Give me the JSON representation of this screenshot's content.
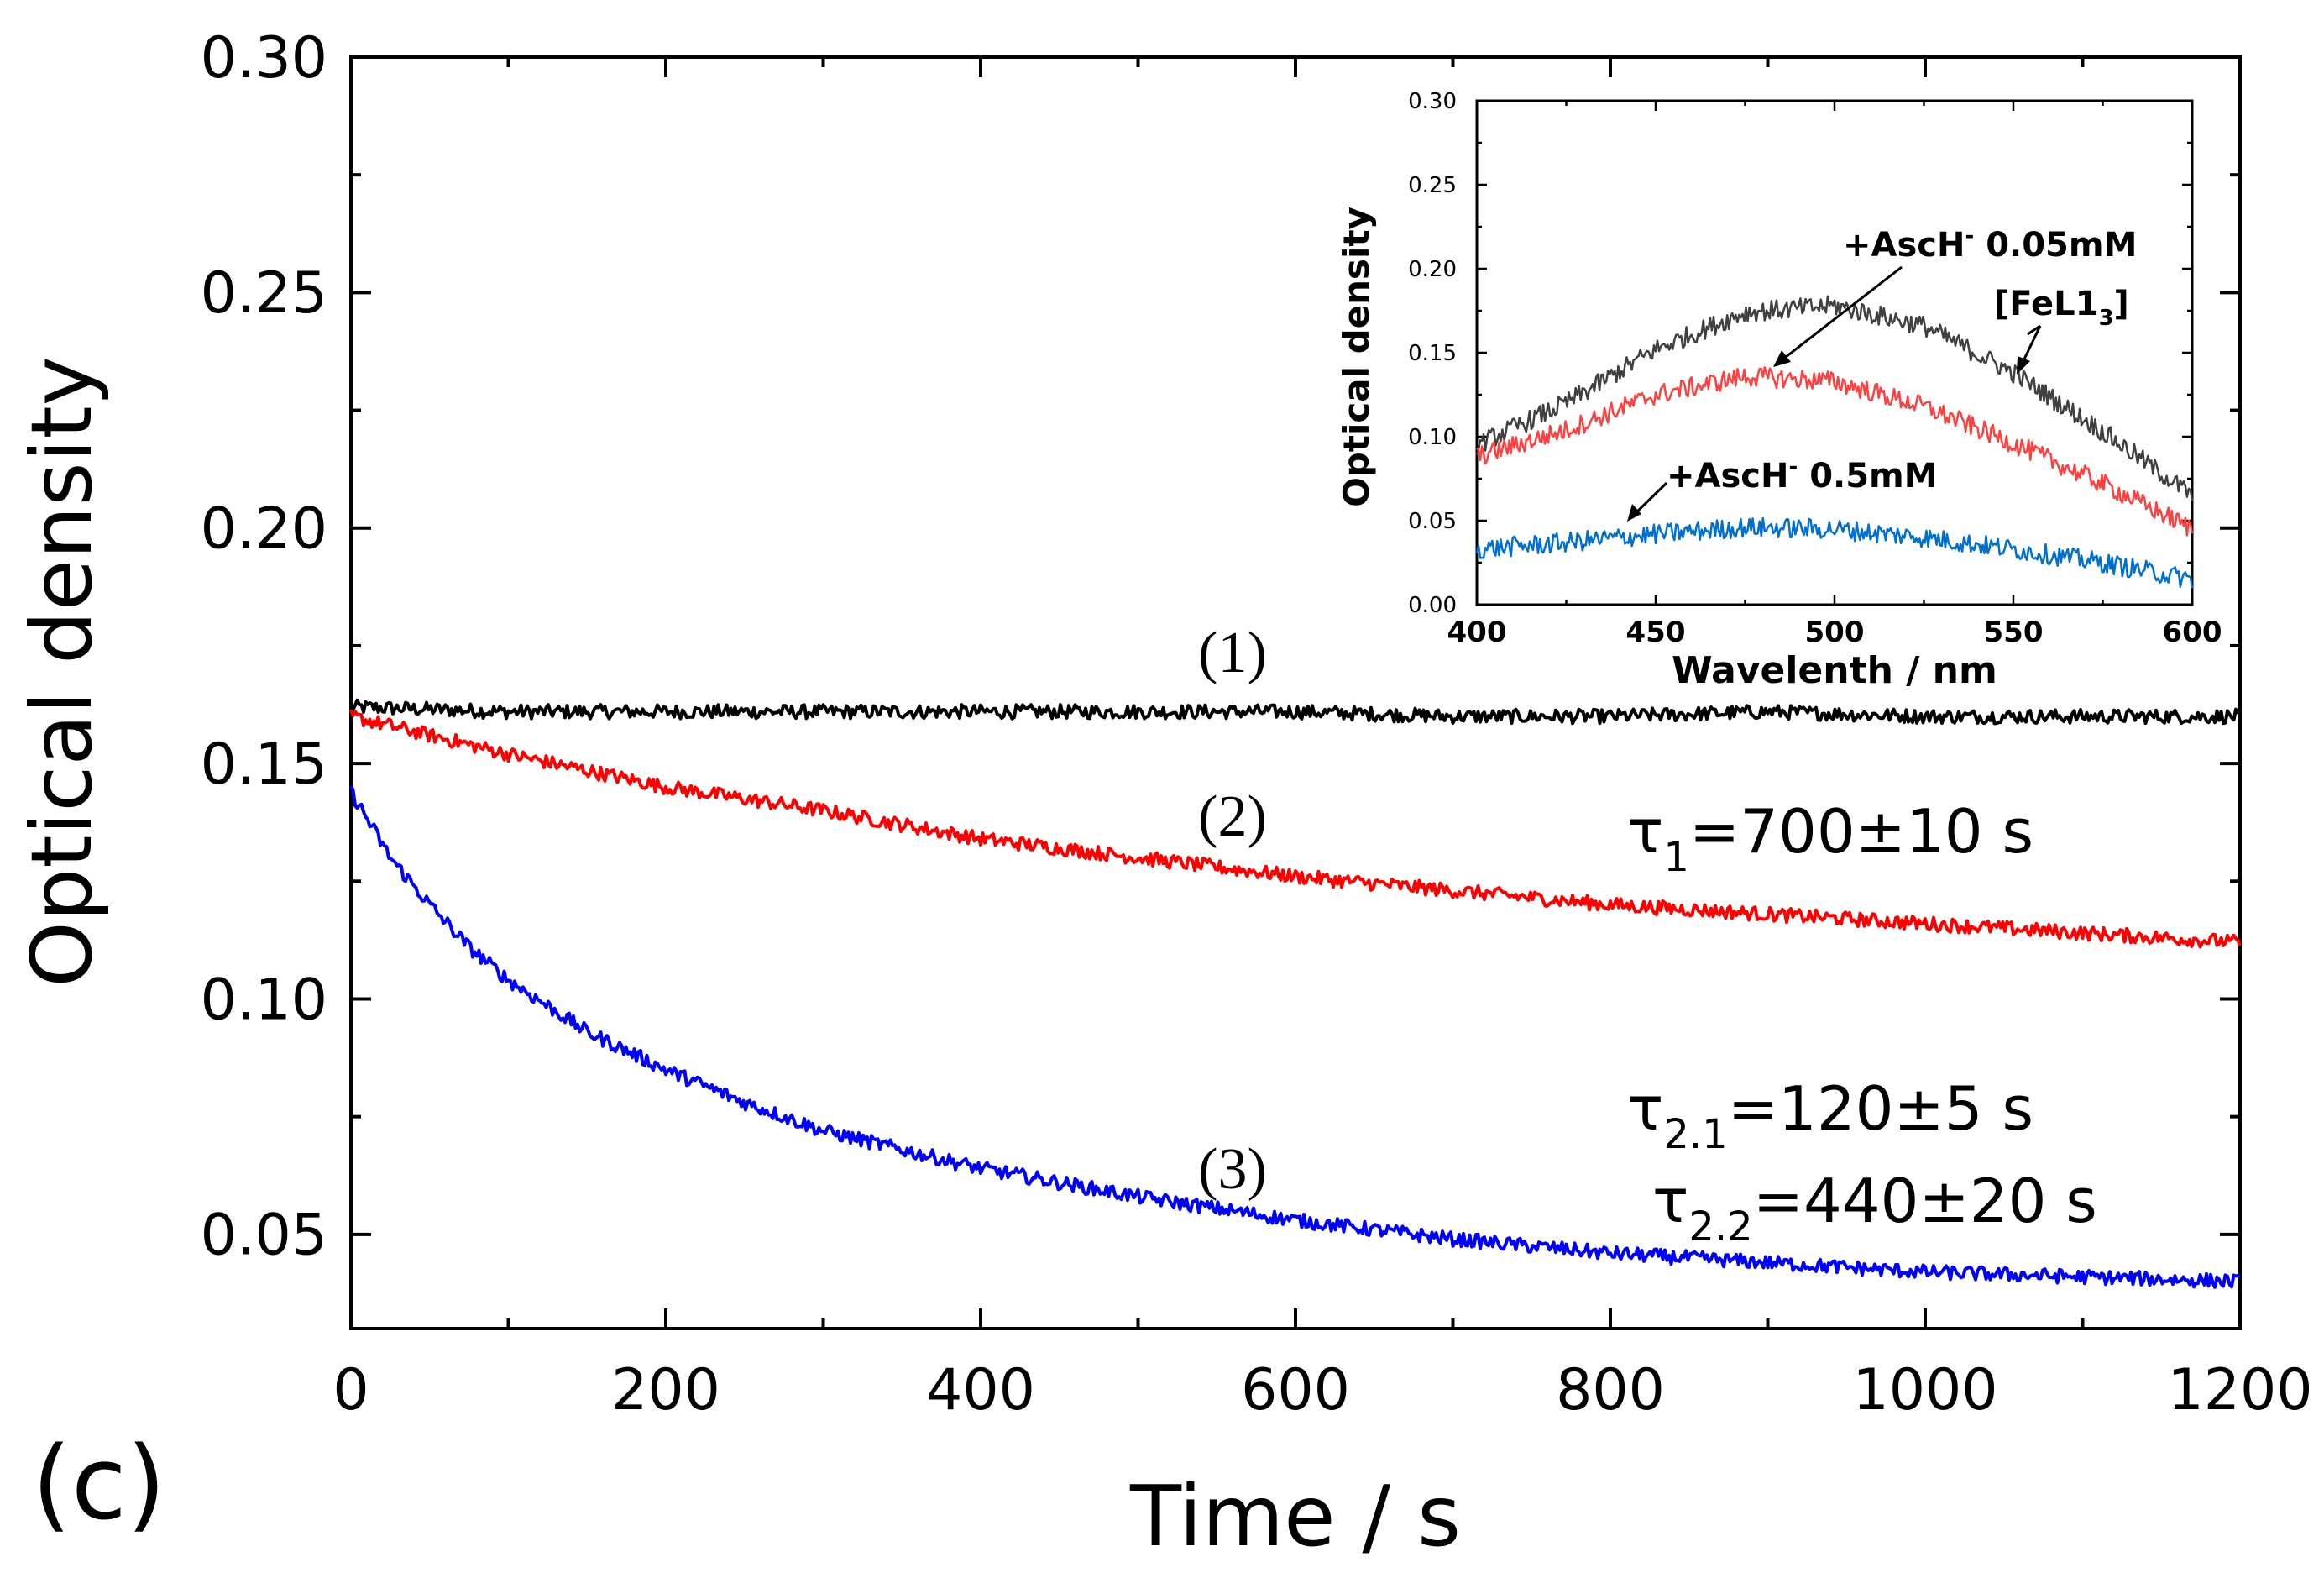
{
  "panel_label": "(c)",
  "chart_data": [
    {
      "type": "line",
      "role": "main",
      "xlabel": "Time / s",
      "ylabel": "Optical density",
      "xlim": [
        0,
        1200
      ],
      "ylim": [
        0.03,
        0.3
      ],
      "xticks": [
        0,
        200,
        400,
        600,
        800,
        1000,
        1200
      ],
      "xtick_labels": [
        "0",
        "200",
        "400",
        "600",
        "800",
        "1000",
        "1200"
      ],
      "yticks": [
        0.05,
        0.1,
        0.15,
        0.2,
        0.25,
        0.3
      ],
      "ytick_labels": [
        "0.05",
        "0.10",
        "0.15",
        "0.20",
        "0.25",
        "0.30"
      ],
      "series": [
        {
          "name": "(1)",
          "color": "#000000",
          "x": [
            0,
            100,
            200,
            300,
            400,
            500,
            600,
            700,
            800,
            900,
            1000,
            1100,
            1200
          ],
          "values": [
            0.162,
            0.161,
            0.161,
            0.161,
            0.161,
            0.161,
            0.161,
            0.16,
            0.16,
            0.161,
            0.16,
            0.16,
            0.16
          ]
        },
        {
          "name": "(2)",
          "color": "#ff0000",
          "x": [
            0,
            100,
            200,
            300,
            400,
            500,
            600,
            700,
            800,
            900,
            1000,
            1100,
            1200
          ],
          "values": [
            0.16,
            0.152,
            0.145,
            0.14,
            0.134,
            0.13,
            0.126,
            0.123,
            0.12,
            0.118,
            0.116,
            0.114,
            0.112
          ]
        },
        {
          "name": "(3)",
          "color": "#0000ff",
          "x": [
            0,
            25,
            50,
            75,
            100,
            150,
            200,
            250,
            300,
            400,
            500,
            600,
            700,
            800,
            900,
            1000,
            1100,
            1200
          ],
          "values": [
            0.144,
            0.13,
            0.12,
            0.111,
            0.104,
            0.093,
            0.085,
            0.078,
            0.072,
            0.064,
            0.058,
            0.053,
            0.049,
            0.046,
            0.044,
            0.042,
            0.041,
            0.04
          ]
        }
      ],
      "annotations": {
        "tau1": {
          "sym": "τ",
          "sub": "1",
          "text": "=700±10 s"
        },
        "tau21": {
          "sym": "τ",
          "sub": "2.1",
          "text": "=120±5 s"
        },
        "tau22": {
          "sym": "τ",
          "sub": "2.2",
          "text": "=440±20 s"
        }
      }
    },
    {
      "type": "line",
      "role": "inset",
      "xlabel": "Wavelenth / nm",
      "ylabel": "Optical density",
      "xlim": [
        400,
        600
      ],
      "ylim": [
        0.0,
        0.3
      ],
      "xticks": [
        400,
        450,
        500,
        550,
        600
      ],
      "xtick_labels": [
        "400",
        "450",
        "500",
        "550",
        "600"
      ],
      "yticks": [
        0.0,
        0.05,
        0.1,
        0.15,
        0.2,
        0.25,
        0.3
      ],
      "ytick_labels": [
        "0.00",
        "0.05",
        "0.10",
        "0.15",
        "0.20",
        "0.25",
        "0.30"
      ],
      "series": [
        {
          "name": "[FeL1₃]",
          "color": "#404040",
          "x": [
            400,
            425,
            450,
            475,
            500,
            525,
            550,
            575,
            600
          ],
          "values": [
            0.095,
            0.12,
            0.152,
            0.174,
            0.178,
            0.166,
            0.138,
            0.103,
            0.065
          ]
        },
        {
          "name": "+AscH⁻ 0.05mM",
          "color": "#ff4040",
          "x": [
            400,
            425,
            450,
            475,
            500,
            525,
            550,
            575,
            600
          ],
          "values": [
            0.088,
            0.104,
            0.125,
            0.136,
            0.133,
            0.118,
            0.096,
            0.072,
            0.045
          ]
        },
        {
          "name": "+AscH⁻ 0.5mM",
          "color": "#0070d0",
          "x": [
            400,
            425,
            450,
            475,
            500,
            525,
            550,
            575,
            600
          ],
          "values": [
            0.033,
            0.037,
            0.042,
            0.046,
            0.045,
            0.04,
            0.033,
            0.025,
            0.015
          ]
        }
      ],
      "labels": {
        "l005": {
          "main": "+AscH",
          "sup": "-",
          "rest": " 0.05mM"
        },
        "l05": {
          "main": "+AscH",
          "sup": "-",
          "rest": " 0.5mM"
        },
        "fel": {
          "main": "[FeL1",
          "sub": "3",
          "rest": "]"
        }
      }
    }
  ]
}
